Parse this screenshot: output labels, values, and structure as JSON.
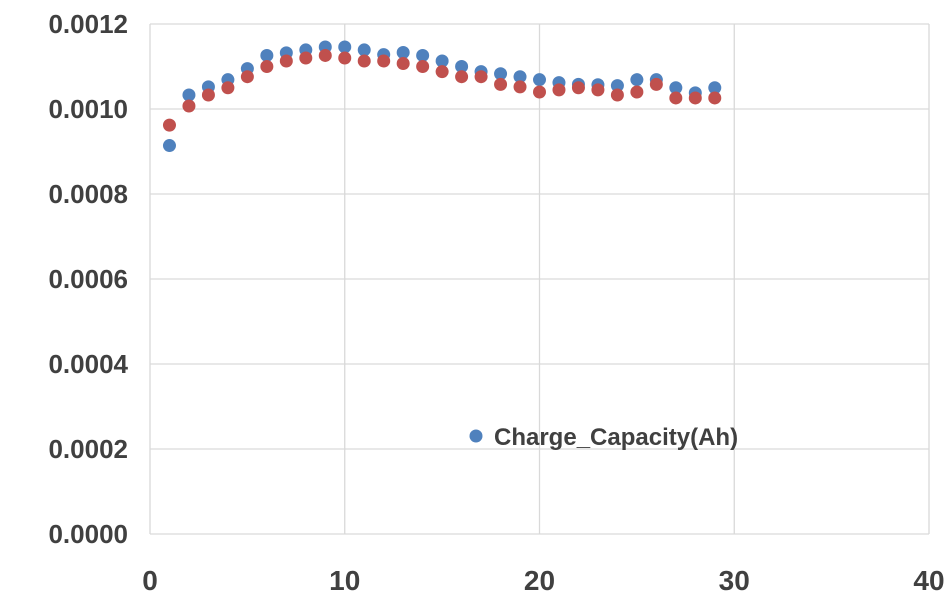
{
  "chart_data": {
    "type": "scatter",
    "xlim": [
      0,
      40
    ],
    "ylim": [
      0,
      0.0012
    ],
    "x_ticks": [
      "0",
      "10",
      "20",
      "30",
      "40"
    ],
    "y_ticks": [
      "0.0000",
      "0.0002",
      "0.0004",
      "0.0006",
      "0.0008",
      "0.0010",
      "0.0012"
    ],
    "grid": true,
    "legend_position": "inside-lower-right",
    "series": [
      {
        "name": "Charge_Capacity(Ah)",
        "color": "#4f81bd",
        "x": [
          1,
          2,
          3,
          4,
          5,
          6,
          7,
          8,
          9,
          10,
          11,
          12,
          13,
          14,
          15,
          16,
          17,
          18,
          19,
          20,
          21,
          22,
          23,
          24,
          25,
          26,
          27,
          28,
          29
        ],
        "y": [
          0.000914,
          0.001033,
          0.001052,
          0.001069,
          0.001095,
          0.001126,
          0.001132,
          0.001139,
          0.001146,
          0.001146,
          0.001139,
          0.001128,
          0.001133,
          0.001126,
          0.001113,
          0.0011,
          0.001088,
          0.001083,
          0.001076,
          0.001069,
          0.001062,
          0.001058,
          0.001057,
          0.001055,
          0.001069,
          0.001069,
          0.00105,
          0.001038,
          0.00105
        ]
      },
      {
        "color": "#c0504d",
        "x": [
          1,
          2,
          3,
          4,
          5,
          6,
          7,
          8,
          9,
          10,
          11,
          12,
          13,
          14,
          15,
          16,
          17,
          18,
          19,
          20,
          21,
          22,
          23,
          24,
          25,
          26,
          27,
          28,
          29
        ],
        "y": [
          0.000962,
          0.001007,
          0.001033,
          0.00105,
          0.001076,
          0.0011,
          0.001113,
          0.00112,
          0.001126,
          0.00112,
          0.001113,
          0.001113,
          0.001107,
          0.0011,
          0.001088,
          0.001076,
          0.001076,
          0.001058,
          0.001052,
          0.00104,
          0.001045,
          0.00105,
          0.001045,
          0.001033,
          0.00104,
          0.001058,
          0.001026,
          0.001026,
          0.001026
        ]
      }
    ]
  }
}
